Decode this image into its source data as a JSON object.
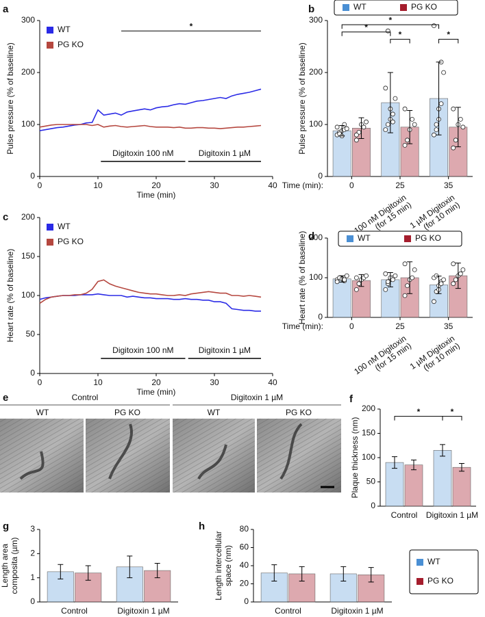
{
  "chart_data": [
    {
      "panel": "a",
      "type": "line",
      "xlabel": "Time (min)",
      "ylabel": "Pulse pressure (% of baseline)",
      "xlim": [
        0,
        40
      ],
      "ylim": [
        0,
        300
      ],
      "xticks": [
        0,
        10,
        20,
        30,
        40
      ],
      "yticks": [
        0,
        100,
        200,
        300
      ],
      "legend": "upper left",
      "x": [
        0,
        1,
        2,
        3,
        4,
        5,
        6,
        7,
        8,
        9,
        10,
        11,
        12,
        13,
        14,
        15,
        16,
        17,
        18,
        19,
        20,
        21,
        22,
        23,
        24,
        25,
        26,
        27,
        28,
        29,
        30,
        31,
        32,
        33,
        34,
        35,
        36,
        37,
        38
      ],
      "series": [
        {
          "name": "WT",
          "color": "#2a2ae6",
          "values": [
            88,
            90,
            92,
            94,
            95,
            97,
            99,
            100,
            103,
            104,
            128,
            118,
            120,
            122,
            118,
            124,
            126,
            128,
            130,
            128,
            132,
            134,
            135,
            138,
            140,
            139,
            142,
            145,
            146,
            148,
            150,
            152,
            150,
            155,
            158,
            160,
            162,
            165,
            168
          ]
        },
        {
          "name": "PG KO",
          "color": "#b5473f",
          "values": [
            95,
            97,
            99,
            100,
            100,
            100,
            100,
            100,
            100,
            98,
            100,
            95,
            97,
            98,
            96,
            95,
            96,
            97,
            98,
            96,
            95,
            95,
            95,
            94,
            95,
            93,
            93,
            94,
            94,
            93,
            93,
            92,
            93,
            94,
            95,
            95,
            96,
            97,
            98
          ]
        }
      ],
      "treatments": [
        {
          "label": "Digitoxin 100 nM",
          "x": [
            10.5,
            25
          ]
        },
        {
          "label": "Digitoxin 1 µM",
          "x": [
            25.5,
            38
          ]
        }
      ],
      "sig_line": {
        "x": [
          14,
          38
        ],
        "y": 280,
        "label": "*"
      }
    },
    {
      "panel": "b",
      "type": "bar",
      "xlabel": "Time (min):",
      "ylabel": "Pulse pressure (% of baseline)",
      "ylim": [
        0,
        300
      ],
      "yticks": [
        0,
        100,
        200,
        300
      ],
      "legend": "above",
      "categories": [
        "0",
        "25",
        "35"
      ],
      "notes": [
        null,
        [
          "100 nM Digitoxin",
          "(for 15 min)"
        ],
        [
          "1 µM Digitoxin",
          "(for 10 min)"
        ]
      ],
      "series": [
        {
          "name": "WT",
          "color": "#4a8fd4",
          "values": [
            88,
            142,
            150
          ],
          "errors": [
            10,
            58,
            70
          ],
          "points": [
            [
              80,
              85,
              88,
              90,
              92,
              95,
              82,
              78,
              100
            ],
            [
              90,
              100,
              110,
              120,
              150,
              170,
              280,
              130,
              105
            ],
            [
              80,
              90,
              110,
              140,
              200,
              290,
              100,
              130,
              220
            ]
          ]
        },
        {
          "name": "PG KO",
          "color": "#a51d2d",
          "values": [
            93,
            95,
            95
          ],
          "errors": [
            20,
            32,
            38
          ],
          "points": [
            [
              70,
              85,
              100,
              95,
              105,
              80
            ],
            [
              60,
              70,
              90,
              110,
              100,
              130
            ],
            [
              55,
              70,
              100,
              110,
              95,
              130
            ]
          ]
        }
      ],
      "brackets": [
        {
          "from": [
            0,
            0
          ],
          "to": [
            2,
            0
          ],
          "y": 292,
          "label": "*"
        },
        {
          "from": [
            0,
            0
          ],
          "to": [
            1,
            0
          ],
          "y": 278,
          "label": "*"
        },
        {
          "from": [
            1,
            0
          ],
          "to": [
            1,
            1
          ],
          "y": 264,
          "label": "*"
        },
        {
          "from": [
            2,
            0
          ],
          "to": [
            2,
            1
          ],
          "y": 264,
          "label": "*"
        }
      ]
    },
    {
      "panel": "c",
      "type": "line",
      "xlabel": "Time (min)",
      "ylabel": "Heart rate (% of baseline)",
      "xlim": [
        0,
        40
      ],
      "ylim": [
        0,
        200
      ],
      "xticks": [
        0,
        10,
        20,
        30,
        40
      ],
      "yticks": [
        0,
        50,
        100,
        150,
        200
      ],
      "legend": "upper left",
      "x": [
        0,
        1,
        2,
        3,
        4,
        5,
        6,
        7,
        8,
        9,
        10,
        11,
        12,
        13,
        14,
        15,
        16,
        17,
        18,
        19,
        20,
        21,
        22,
        23,
        24,
        25,
        26,
        27,
        28,
        29,
        30,
        31,
        32,
        33,
        34,
        35,
        36,
        37,
        38
      ],
      "series": [
        {
          "name": "WT",
          "color": "#2a2ae6",
          "values": [
            95,
            97,
            98,
            99,
            100,
            100,
            100,
            101,
            101,
            101,
            102,
            101,
            100,
            100,
            100,
            98,
            99,
            98,
            97,
            97,
            96,
            96,
            96,
            95,
            95,
            96,
            95,
            95,
            94,
            94,
            92,
            92,
            90,
            83,
            82,
            81,
            81,
            80,
            80
          ]
        },
        {
          "name": "PG KO",
          "color": "#b5473f",
          "values": [
            90,
            95,
            98,
            99,
            100,
            100,
            101,
            101,
            103,
            108,
            118,
            120,
            115,
            112,
            110,
            108,
            106,
            104,
            103,
            102,
            102,
            101,
            100,
            100,
            101,
            100,
            102,
            103,
            104,
            105,
            104,
            103,
            103,
            100,
            100,
            99,
            100,
            99,
            98
          ]
        }
      ],
      "treatments": [
        {
          "label": "Digitoxin 100 nM",
          "x": [
            10.5,
            25
          ]
        },
        {
          "label": "Digitoxin 1 µM",
          "x": [
            25.5,
            38
          ]
        }
      ]
    },
    {
      "panel": "d",
      "type": "bar",
      "xlabel": "Time (min):",
      "ylabel": "Heart rate (% of baseline)",
      "ylim": [
        0,
        200
      ],
      "yticks": [
        0,
        100,
        200
      ],
      "legend": "upper center",
      "categories": [
        "0",
        "25",
        "35"
      ],
      "notes": [
        null,
        [
          "100 nM Digitoxin",
          "(for 15 min)"
        ],
        [
          "1 µM Digitoxin",
          "(for 10 min)"
        ]
      ],
      "series": [
        {
          "name": "WT",
          "color": "#4a8fd4",
          "values": [
            97,
            95,
            82
          ],
          "errors": [
            8,
            18,
            22
          ],
          "points": [
            [
              95,
              100,
              98,
              92,
              105,
              90,
              100,
              97,
              95
            ],
            [
              70,
              85,
              95,
              100,
              105,
              110,
              90,
              100,
              95
            ],
            [
              40,
              65,
              80,
              90,
              95,
              100,
              105,
              70,
              85
            ]
          ]
        },
        {
          "name": "PG KO",
          "color": "#a51d2d",
          "values": [
            93,
            100,
            105
          ],
          "errors": [
            15,
            40,
            32
          ],
          "points": [
            [
              70,
              85,
              95,
              100,
              105,
              100
            ],
            [
              55,
              80,
              95,
              100,
              120,
              135
            ],
            [
              85,
              95,
              105,
              110,
              120,
              135
            ]
          ]
        }
      ]
    },
    {
      "panel": "f",
      "type": "bar",
      "ylabel": "Plaque thickness (nm)",
      "ylim": [
        0,
        200
      ],
      "yticks": [
        0,
        50,
        100,
        150,
        200
      ],
      "legend": false,
      "categories": [
        "Control",
        "Digitoxin 1 µM"
      ],
      "series": [
        {
          "name": "WT",
          "color": "#4a8fd4",
          "values": [
            90,
            115
          ],
          "errors": [
            12,
            12
          ]
        },
        {
          "name": "PG KO",
          "color": "#a51d2d",
          "values": [
            85,
            80
          ],
          "errors": [
            10,
            8
          ]
        }
      ],
      "brackets": [
        {
          "from": [
            0,
            0
          ],
          "to": [
            1,
            0
          ],
          "y": 185,
          "label": "*"
        },
        {
          "from": [
            1,
            0
          ],
          "to": [
            1,
            1
          ],
          "y": 185,
          "label": "*"
        }
      ]
    },
    {
      "panel": "g",
      "type": "bar",
      "ylabel": [
        "Length area",
        "composita (µm)"
      ],
      "ylim": [
        0,
        3
      ],
      "yticks": [
        0,
        1,
        2,
        3
      ],
      "legend": false,
      "categories": [
        "Control",
        "Digitoxin 1 µM"
      ],
      "series": [
        {
          "name": "WT",
          "color": "#4a8fd4",
          "values": [
            1.25,
            1.45
          ],
          "errors": [
            0.3,
            0.45
          ]
        },
        {
          "name": "PG KO",
          "color": "#a51d2d",
          "values": [
            1.2,
            1.3
          ],
          "errors": [
            0.3,
            0.3
          ]
        }
      ]
    },
    {
      "panel": "h",
      "type": "bar",
      "ylabel": [
        "Length intercellular",
        "space (nm)"
      ],
      "ylim": [
        0,
        80
      ],
      "yticks": [
        0,
        20,
        40,
        60,
        80
      ],
      "legend": "right",
      "categories": [
        "Control",
        "Digitoxin 1 µM"
      ],
      "series": [
        {
          "name": "WT",
          "color": "#4a8fd4",
          "values": [
            32,
            31
          ],
          "errors": [
            9,
            8
          ]
        },
        {
          "name": "PG KO",
          "color": "#a51d2d",
          "values": [
            31,
            30
          ],
          "errors": [
            8,
            8
          ]
        }
      ]
    }
  ],
  "micrograph_panel": {
    "panel": "e",
    "groups": [
      {
        "label": "Control",
        "columns": [
          "WT",
          "PG KO"
        ]
      },
      {
        "label": "Digitoxin 1 µM",
        "columns": [
          "WT",
          "PG KO"
        ]
      }
    ]
  }
}
